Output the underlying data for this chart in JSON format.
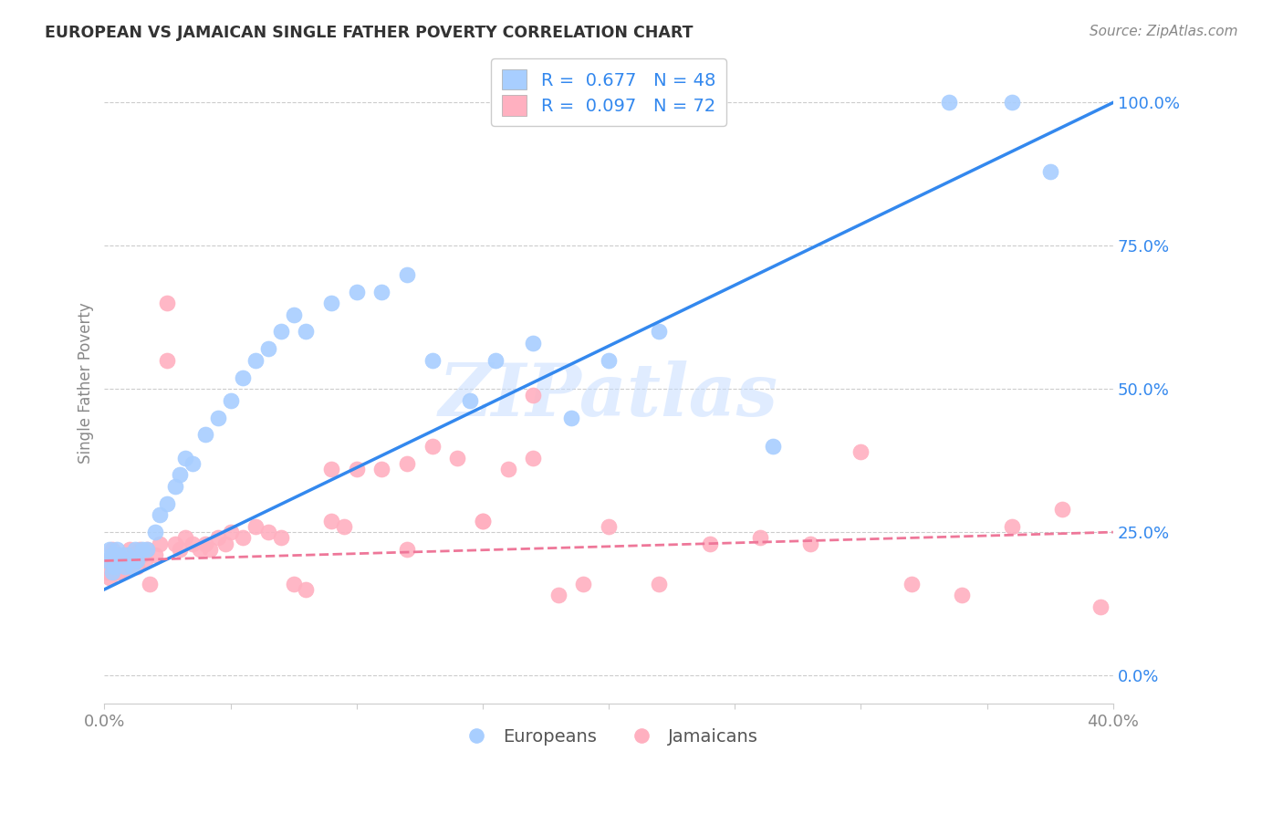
{
  "title": "EUROPEAN VS JAMAICAN SINGLE FATHER POVERTY CORRELATION CHART",
  "source": "Source: ZipAtlas.com",
  "ylabel": "Single Father Poverty",
  "xlim": [
    0.0,
    0.4
  ],
  "ylim": [
    -0.05,
    1.07
  ],
  "yticks": [
    0.0,
    0.25,
    0.5,
    0.75,
    1.0
  ],
  "ytick_labels": [
    "0.0%",
    "25.0%",
    "50.0%",
    "75.0%",
    "100.0%"
  ],
  "european_R": 0.677,
  "european_N": 48,
  "jamaican_R": 0.097,
  "jamaican_N": 72,
  "european_color": "#A8CEFF",
  "jamaican_color": "#FFB0C0",
  "regression_blue": "#3388EE",
  "regression_pink": "#EE7799",
  "watermark": "ZIPatlas",
  "european_x": [
    0.001,
    0.002,
    0.003,
    0.003,
    0.004,
    0.005,
    0.005,
    0.006,
    0.007,
    0.008,
    0.009,
    0.01,
    0.011,
    0.012,
    0.013,
    0.015,
    0.017,
    0.02,
    0.022,
    0.025,
    0.028,
    0.03,
    0.032,
    0.035,
    0.04,
    0.045,
    0.05,
    0.055,
    0.06,
    0.065,
    0.07,
    0.075,
    0.08,
    0.09,
    0.1,
    0.11,
    0.12,
    0.13,
    0.145,
    0.155,
    0.17,
    0.185,
    0.2,
    0.22,
    0.265,
    0.335,
    0.36,
    0.375
  ],
  "european_y": [
    0.2,
    0.22,
    0.18,
    0.21,
    0.19,
    0.2,
    0.22,
    0.21,
    0.2,
    0.19,
    0.21,
    0.2,
    0.19,
    0.22,
    0.2,
    0.22,
    0.22,
    0.25,
    0.28,
    0.3,
    0.33,
    0.35,
    0.38,
    0.37,
    0.42,
    0.45,
    0.48,
    0.52,
    0.55,
    0.57,
    0.6,
    0.63,
    0.6,
    0.65,
    0.67,
    0.67,
    0.7,
    0.55,
    0.48,
    0.55,
    0.58,
    0.45,
    0.55,
    0.6,
    0.4,
    1.0,
    1.0,
    0.88
  ],
  "jamaican_x": [
    0.001,
    0.002,
    0.002,
    0.003,
    0.003,
    0.004,
    0.004,
    0.005,
    0.005,
    0.006,
    0.006,
    0.007,
    0.007,
    0.008,
    0.008,
    0.009,
    0.01,
    0.011,
    0.012,
    0.013,
    0.014,
    0.015,
    0.016,
    0.017,
    0.018,
    0.02,
    0.022,
    0.025,
    0.028,
    0.03,
    0.032,
    0.035,
    0.038,
    0.04,
    0.042,
    0.045,
    0.048,
    0.05,
    0.055,
    0.06,
    0.065,
    0.07,
    0.075,
    0.08,
    0.09,
    0.095,
    0.1,
    0.11,
    0.12,
    0.13,
    0.14,
    0.15,
    0.16,
    0.17,
    0.18,
    0.19,
    0.2,
    0.22,
    0.24,
    0.26,
    0.28,
    0.3,
    0.32,
    0.34,
    0.36,
    0.38,
    0.395,
    0.17,
    0.025,
    0.09,
    0.12,
    0.15
  ],
  "jamaican_y": [
    0.18,
    0.2,
    0.17,
    0.19,
    0.22,
    0.18,
    0.2,
    0.19,
    0.21,
    0.18,
    0.2,
    0.19,
    0.18,
    0.21,
    0.2,
    0.19,
    0.22,
    0.21,
    0.2,
    0.19,
    0.22,
    0.21,
    0.2,
    0.22,
    0.16,
    0.21,
    0.23,
    0.65,
    0.23,
    0.22,
    0.24,
    0.23,
    0.22,
    0.23,
    0.22,
    0.24,
    0.23,
    0.25,
    0.24,
    0.26,
    0.25,
    0.24,
    0.16,
    0.15,
    0.27,
    0.26,
    0.36,
    0.36,
    0.37,
    0.4,
    0.38,
    0.27,
    0.36,
    0.38,
    0.14,
    0.16,
    0.26,
    0.16,
    0.23,
    0.24,
    0.23,
    0.39,
    0.16,
    0.14,
    0.26,
    0.29,
    0.12,
    0.49,
    0.55,
    0.36,
    0.22,
    0.27
  ]
}
